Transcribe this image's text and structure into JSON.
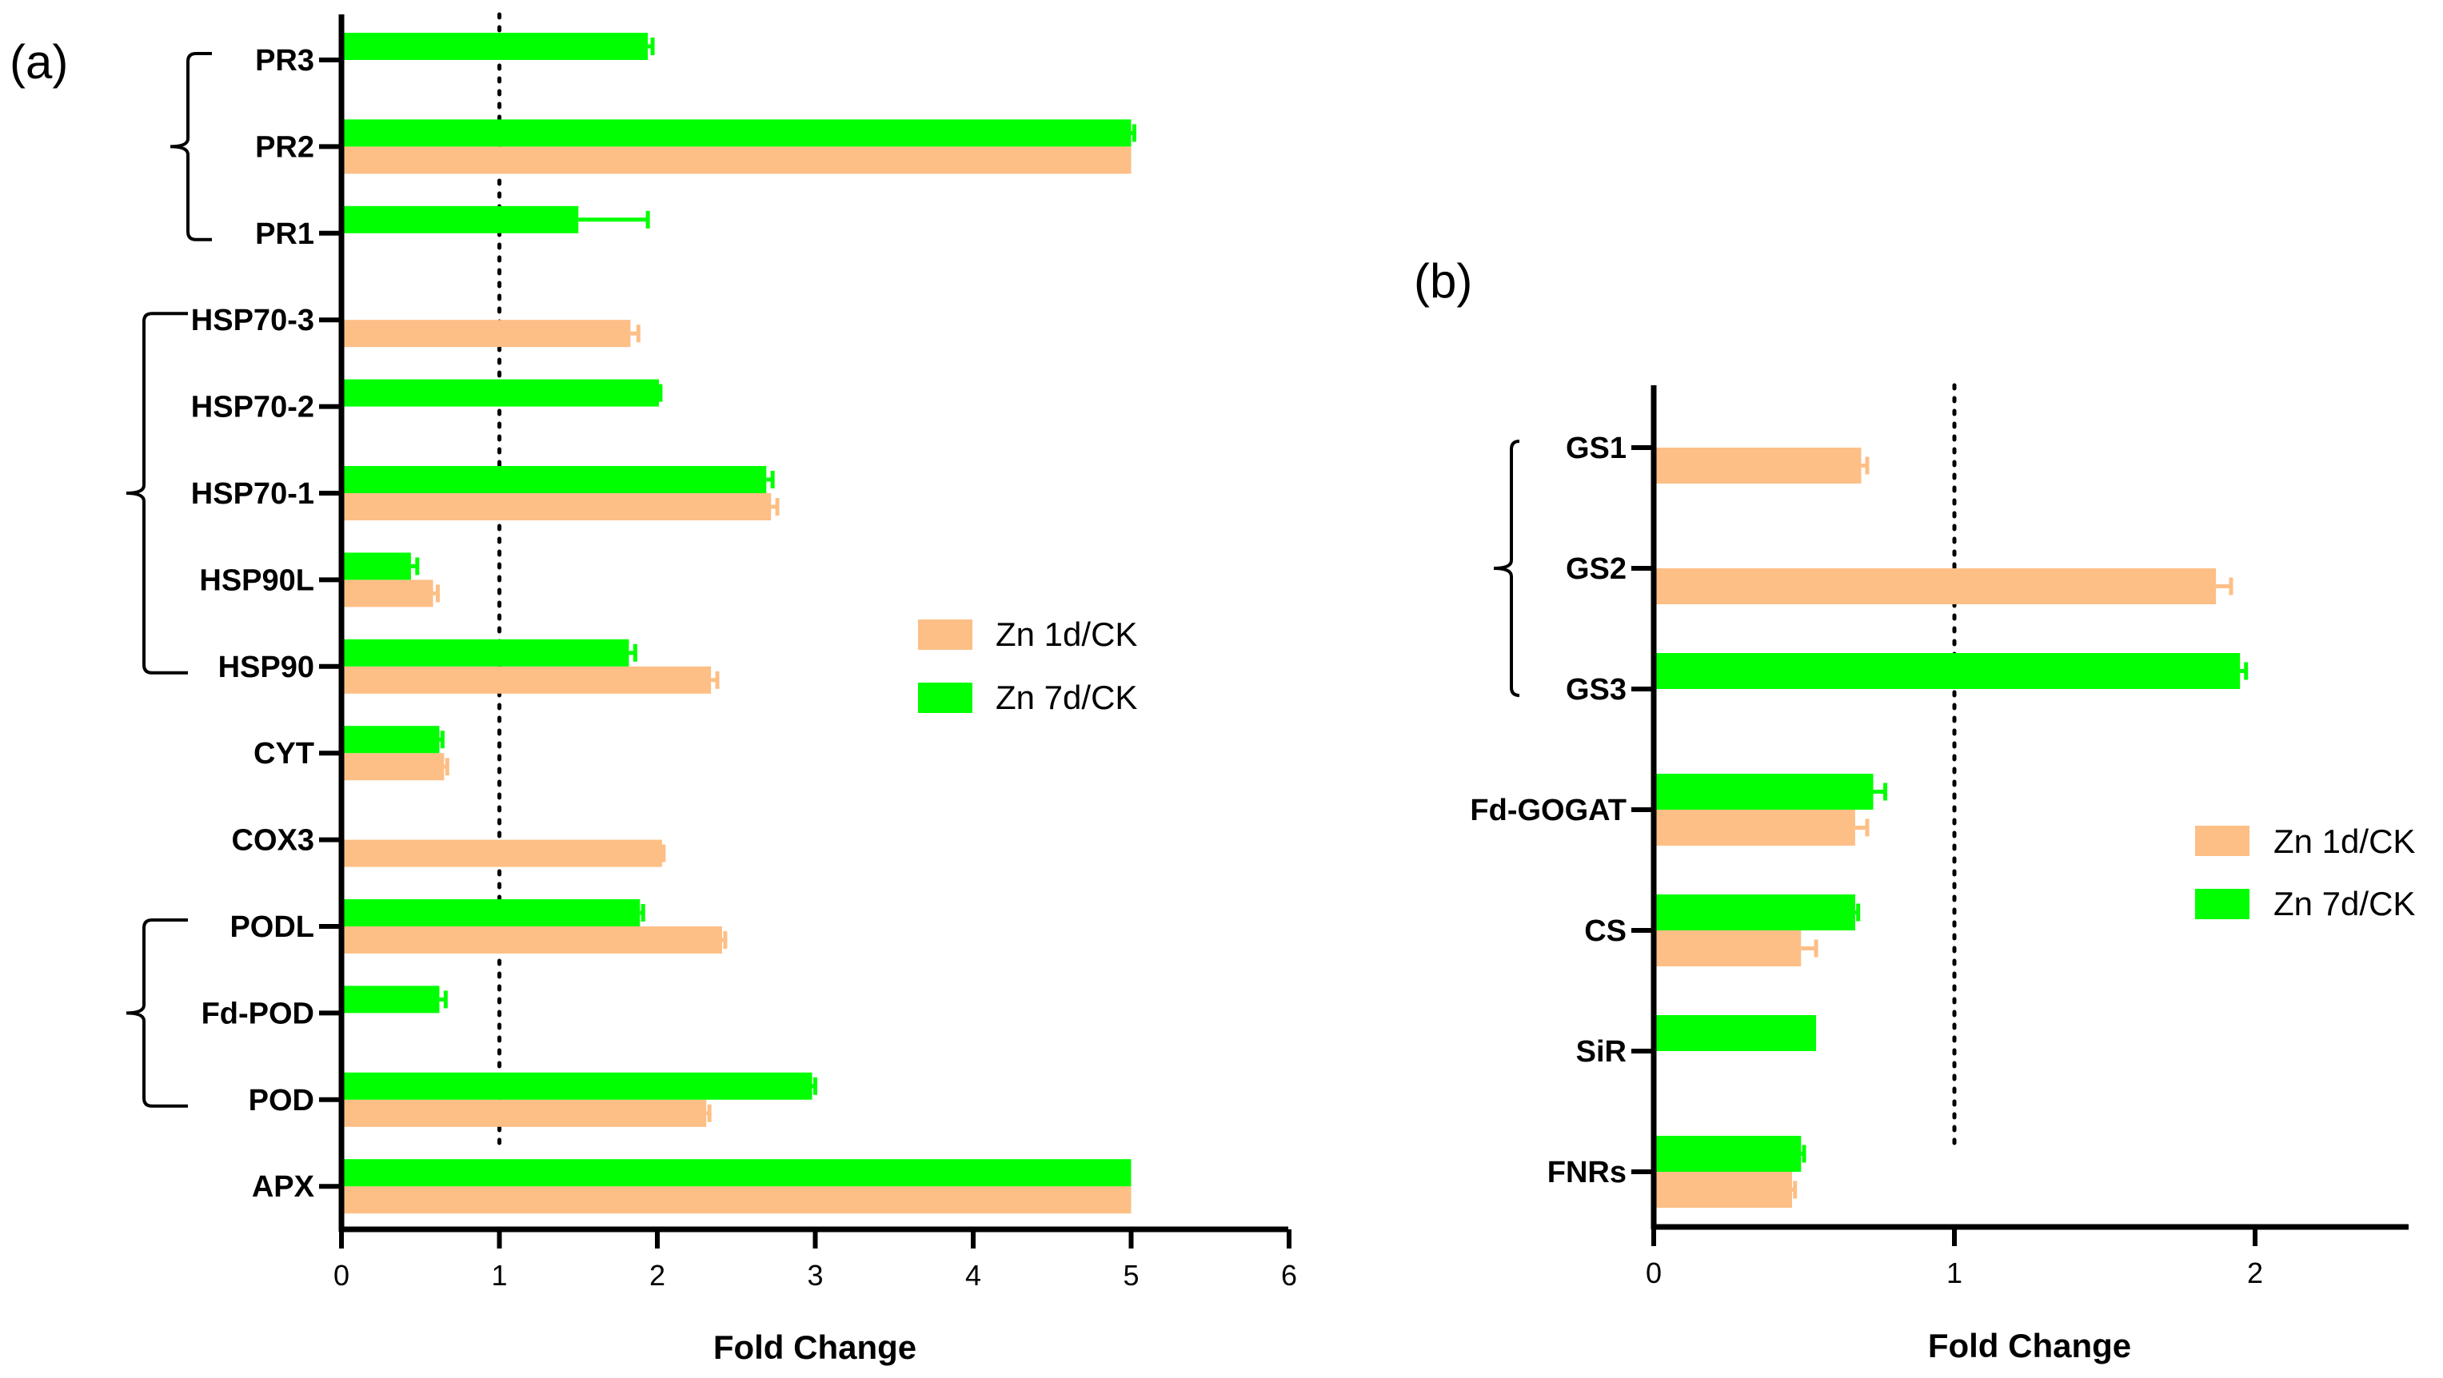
{
  "colors": {
    "zn1d": "#FDBF86",
    "zn7d": "#00FF00",
    "axis": "#000000",
    "error_zn1d": "#FDBF86",
    "error_zn7d": "#00FF00"
  },
  "chart_data": [
    {
      "type": "bar",
      "orientation": "horizontal",
      "panel_label": "(a)",
      "xlabel": "Fold Change",
      "ylabel": "",
      "xlim": [
        0,
        6
      ],
      "xticks": [
        "0",
        "1",
        "2",
        "3",
        "4",
        "5",
        "6"
      ],
      "reference_line": 1,
      "legend_position": "middle-right",
      "categories": [
        "PR3",
        "PR2",
        "PR1",
        "HSP70-3",
        "HSP70-2",
        "HSP70-1",
        "HSP90L",
        "HSP90",
        "CYT",
        "COX3",
        "PODL",
        "Fd-POD",
        "POD",
        "APX"
      ],
      "groups": [
        {
          "span": [
            "PR3",
            "PR1"
          ]
        },
        {
          "span": [
            "HSP70-3",
            "HSP90"
          ]
        },
        {
          "span": [
            "PODL",
            "POD"
          ]
        }
      ],
      "series": [
        {
          "name": "Zn 1d/CK",
          "values": [
            null,
            5.0,
            null,
            1.83,
            null,
            2.72,
            0.58,
            2.34,
            0.65,
            2.03,
            2.41,
            null,
            2.31,
            5.0
          ],
          "errors": [
            0,
            0,
            0,
            0.05,
            0,
            0.04,
            0.03,
            0.04,
            0.02,
            0.01,
            0.02,
            0,
            0.02,
            0
          ]
        },
        {
          "name": "Zn 7d/CK",
          "values": [
            1.94,
            5.0,
            1.5,
            null,
            2.01,
            2.69,
            0.44,
            1.82,
            0.62,
            null,
            1.89,
            0.62,
            2.98,
            5.0
          ],
          "errors": [
            0.03,
            0.02,
            0.44,
            0,
            0.01,
            0.04,
            0.04,
            0.04,
            0.02,
            0,
            0.02,
            0.04,
            0.02,
            0
          ]
        }
      ]
    },
    {
      "type": "bar",
      "orientation": "horizontal",
      "panel_label": "(b)",
      "xlabel": "Fold Change",
      "ylabel": "",
      "xlim": [
        0,
        2.5
      ],
      "xticks": [
        "0",
        "1",
        "2"
      ],
      "reference_line": 1,
      "legend_position": "middle-right",
      "categories": [
        "GS1",
        "GS2",
        "GS3",
        "Fd-GOGAT",
        "CS",
        "SiR",
        "FNRs"
      ],
      "groups": [
        {
          "span": [
            "GS1",
            "GS3"
          ]
        }
      ],
      "series": [
        {
          "name": "Zn 1d/CK",
          "values": [
            0.69,
            1.87,
            null,
            0.67,
            0.49,
            null,
            0.46
          ],
          "errors": [
            0.02,
            0.05,
            0,
            0.04,
            0.05,
            0,
            0.01
          ]
        },
        {
          "name": "Zn 7d/CK",
          "values": [
            null,
            null,
            1.95,
            0.73,
            0.67,
            0.54,
            0.49
          ],
          "errors": [
            0,
            0,
            0.02,
            0.04,
            0.01,
            0,
            0.01
          ]
        }
      ]
    }
  ]
}
